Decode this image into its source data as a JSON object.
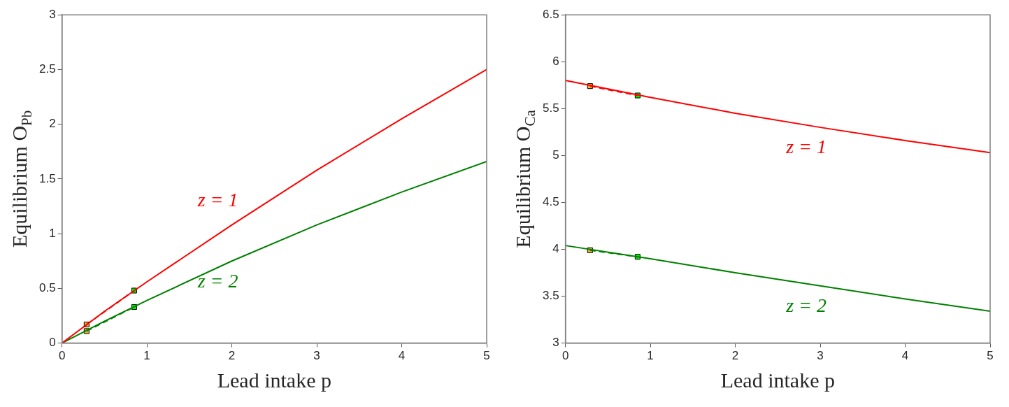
{
  "chart_data": [
    {
      "type": "line",
      "xlabel": "Lead intake p",
      "ylabel": "Equilibrium O$_{Pb}$",
      "xlim": [
        0,
        5
      ],
      "xticks": [
        0,
        1,
        2,
        3,
        4,
        5
      ],
      "ylim": [
        0,
        3
      ],
      "yticks": [
        0,
        0.5,
        1,
        1.5,
        2,
        2.5,
        3
      ],
      "marker": "none",
      "line_style": "solid",
      "series": [
        {
          "name": "z = 1",
          "color": "#ff0000",
          "x": [
            0,
            0.5,
            1,
            2,
            3,
            4,
            5
          ],
          "values": [
            0,
            0.29,
            0.56,
            1.08,
            1.58,
            2.05,
            2.5
          ]
        },
        {
          "name": "z = 2",
          "color": "#008000",
          "x": [
            0,
            0.5,
            1,
            2,
            3,
            4,
            5
          ],
          "values": [
            0,
            0.2,
            0.39,
            0.75,
            1.08,
            1.38,
            1.66
          ]
        },
        {
          "color": "#ff0000",
          "line_style": "dashed",
          "x": [
            0.29,
            0.85
          ],
          "values": [
            0.17,
            0.48
          ]
        },
        {
          "color": "#008000",
          "line_style": "dashed",
          "x": [
            0.29,
            0.85
          ],
          "values": [
            0.11,
            0.33
          ]
        },
        {
          "type": "scatter",
          "marker": "square",
          "x": [
            0.29,
            0.85,
            0.29,
            0.85
          ],
          "values": [
            0.17,
            0.48,
            0.11,
            0.33
          ],
          "colors": [
            "#f0b030",
            "#00ee00",
            "#f0b030",
            "#00ee00"
          ]
        }
      ]
    },
    {
      "type": "line",
      "xlabel": "Lead intake p",
      "ylabel": "Equilibrium O$_{Ca}$",
      "xlim": [
        0,
        5
      ],
      "xticks": [
        0,
        1,
        2,
        3,
        4,
        5
      ],
      "ylim": [
        3,
        6.5
      ],
      "yticks": [
        3,
        3.5,
        4,
        4.5,
        5,
        5.5,
        6,
        6.5
      ],
      "marker": "none",
      "line_style": "solid",
      "series": [
        {
          "name": "z = 1",
          "color": "#ff0000",
          "x": [
            0,
            1,
            2,
            3,
            4,
            5
          ],
          "values": [
            5.8,
            5.62,
            5.45,
            5.3,
            5.16,
            5.03
          ]
        },
        {
          "name": "z = 2",
          "color": "#008000",
          "x": [
            0,
            1,
            2,
            3,
            4,
            5
          ],
          "values": [
            4.04,
            3.9,
            3.75,
            3.61,
            3.47,
            3.34
          ]
        },
        {
          "color": "#ff0000",
          "line_style": "dashed",
          "x": [
            0.29,
            0.85
          ],
          "values": [
            5.74,
            5.64
          ]
        },
        {
          "color": "#008000",
          "line_style": "dashed",
          "x": [
            0.29,
            0.85
          ],
          "values": [
            3.99,
            3.92
          ]
        },
        {
          "type": "scatter",
          "marker": "square",
          "x": [
            0.29,
            0.85,
            0.29,
            0.85
          ],
          "values": [
            5.74,
            5.64,
            3.99,
            3.92
          ],
          "colors": [
            "#f0b030",
            "#00ee00",
            "#f0b030",
            "#00ee00"
          ]
        }
      ]
    }
  ]
}
